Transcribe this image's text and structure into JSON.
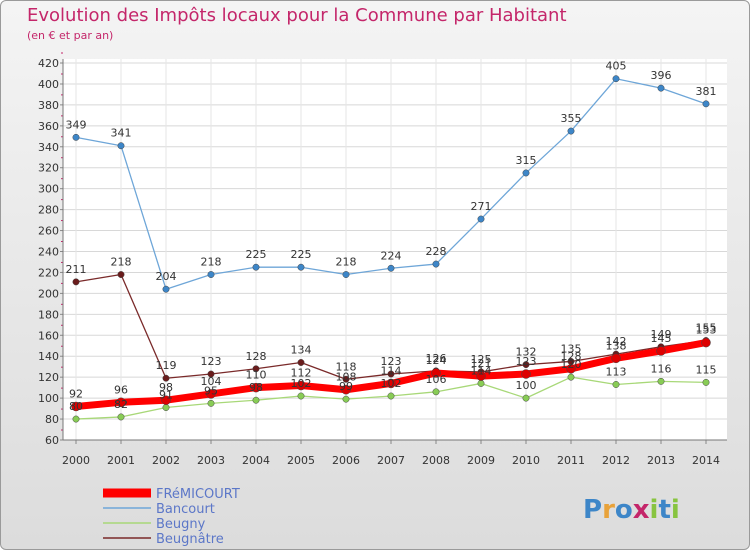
{
  "title": "Evolution des Impôts locaux pour la Commune par Habitant",
  "subtitle": "(en € et par an)",
  "logo": "Proxiti",
  "colors": {
    "title": "#c4266a",
    "legend_text": "#5c77c8"
  },
  "chart_data": {
    "type": "line",
    "title": "Evolution des Impôts locaux pour la Commune par Habitant",
    "ylabel": "(en € et par an)",
    "xlabel": "",
    "ylim": [
      60,
      420
    ],
    "yticks": [
      60,
      80,
      100,
      120,
      140,
      160,
      180,
      200,
      220,
      240,
      260,
      280,
      300,
      320,
      340,
      360,
      380,
      400,
      420
    ],
    "x": [
      "2000",
      "2001",
      "2002",
      "2003",
      "2004",
      "2005",
      "2006",
      "2007",
      "2008",
      "2009",
      "2010",
      "2011",
      "2012",
      "2013",
      "2014"
    ],
    "grid": true,
    "legend_position": "bottom-left",
    "series": [
      {
        "name": "Bancourt",
        "color": "#6ea6d8",
        "marker": "#3d86c8",
        "values": [
          349,
          341,
          204,
          218,
          225,
          225,
          218,
          224,
          228,
          271,
          315,
          355,
          405,
          396,
          381
        ]
      },
      {
        "name": "Beugnâtre",
        "color": "#7a2a2a",
        "marker": "#6a1c1c",
        "values": [
          211,
          218,
          119,
          123,
          128,
          134,
          118,
          123,
          126,
          125,
          132,
          135,
          142,
          149,
          155
        ]
      },
      {
        "name": "Beugny",
        "color": "#a8d878",
        "marker": "#88cc55",
        "values": [
          80,
          82,
          91,
          95,
          98,
          102,
          99,
          102,
          106,
          114,
          100,
          120,
          113,
          116,
          115
        ]
      },
      {
        "name": "FRéMICOURT",
        "color": "#ff0000",
        "marker": "#dd0000",
        "values": [
          92,
          96,
          98,
          104,
          110,
          112,
          108,
          114,
          124,
          121,
          123,
          128,
          138,
          145,
          153
        ]
      }
    ],
    "legend": [
      "FRéMICOURT",
      "Bancourt",
      "Beugny",
      "Beugnâtre"
    ]
  }
}
